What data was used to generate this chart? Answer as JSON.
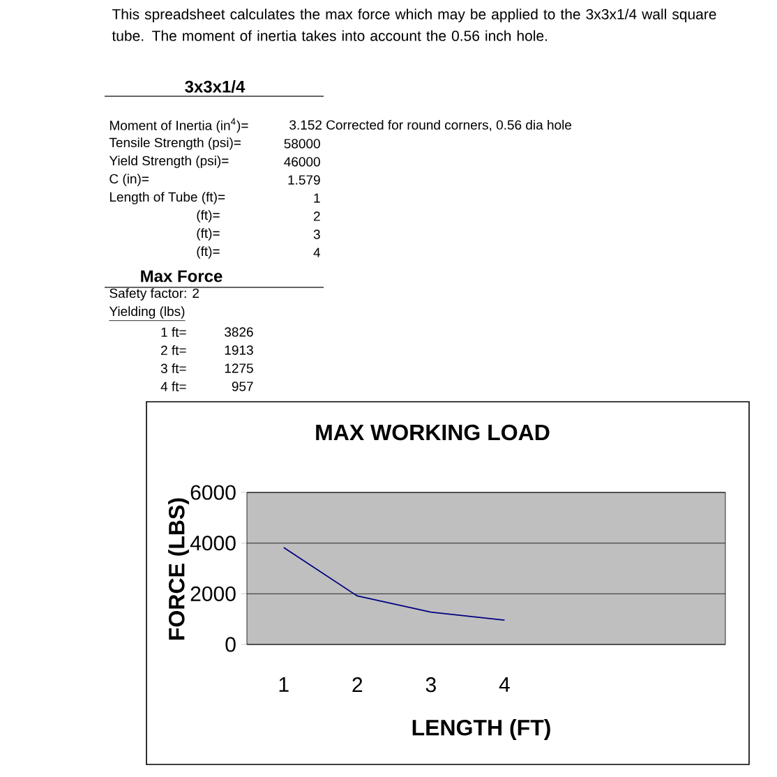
{
  "chart_data": {
    "type": "line",
    "title": "MAX WORKING LOAD",
    "xlabel": "LENGTH (FT)",
    "ylabel": "FORCE (LBS)",
    "categories": [
      "1",
      "2",
      "3",
      "4"
    ],
    "values": [
      3826,
      1913,
      1275,
      957
    ],
    "color": "#000080",
    "ylim": [
      0,
      6000
    ],
    "yticks": [
      0,
      2000,
      4000,
      6000
    ],
    "grid": "y",
    "marker": "none",
    "annotations": [
      "This spreadsheet calculates the max force which may be applied to the 3x3x1/4 wall square tube. The moment of inertia takes into account the 0.56 inch hole.",
      "3x3x1/4",
      "Moment of Inertia (in$^{4}$)=",
      "3.152 Corrected for round corners, 0.56 dia hole",
      "Tensile Strength (psi)=",
      "58000",
      "Yield Strength (psi)=",
      "46000",
      "C (in)=",
      "1.579",
      "Length of Tube (ft)=",
      "1",
      "(ft)=",
      "2",
      "(ft)=",
      "3",
      "(ft)=",
      "4",
      "Max Force",
      "Safety factor: 2",
      "Yielding (lbs)",
      "1 ft=",
      "3826",
      "2 ft=",
      "1913",
      "3 ft=",
      "1275",
      "4 ft=",
      "957"
    ]
  }
}
